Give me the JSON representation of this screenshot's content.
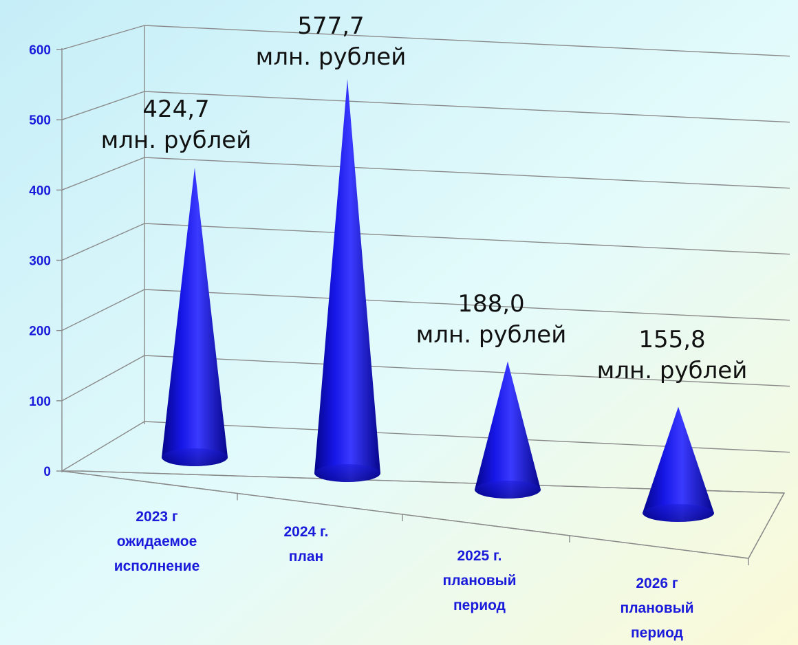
{
  "chart_data": {
    "type": "bar",
    "style": "3d-cone",
    "categories": [
      [
        "2023 г",
        "ожидаемое",
        "исполнение"
      ],
      [
        "2024 г.",
        "план"
      ],
      [
        "2025 г.",
        "плановый",
        "период"
      ],
      [
        "2026 г",
        "плановый",
        "период"
      ]
    ],
    "values": [
      424.7,
      577.7,
      188.0,
      155.8
    ],
    "data_labels": [
      [
        "424,7",
        "млн. рублей"
      ],
      [
        "577,7",
        "млн. рублей"
      ],
      [
        "188,0",
        "млн. рублей"
      ],
      [
        "155,8",
        "млн. рублей"
      ]
    ],
    "yticks": [
      "0",
      "100",
      "200",
      "300",
      "400",
      "500",
      "600"
    ],
    "ylim": [
      0,
      600
    ],
    "grid": true,
    "legend": "none",
    "colors": {
      "cone": "#1010e0",
      "axis_text": "#1a1adb",
      "grid": "#8a8a8a"
    }
  }
}
